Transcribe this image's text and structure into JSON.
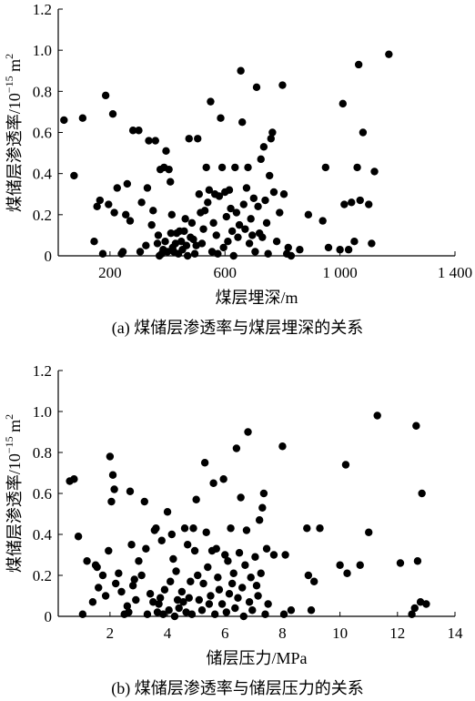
{
  "chart_data": [
    {
      "type": "scatter",
      "caption": "(a)  煤储层渗透率与煤层埋深的关系",
      "xlabel": "煤层埋深/m",
      "ylabel": "煤储层渗透率/10",
      "ylabel_sup": "−15",
      "ylabel_unit": " m",
      "ylabel_unit_sup": "2",
      "xlim": [
        20,
        1400
      ],
      "ylim": [
        0,
        1.2
      ],
      "x_ticks": [
        200,
        600,
        1000,
        1400
      ],
      "x_tick_labels": [
        "200",
        "600",
        "1 000",
        "1 400"
      ],
      "y_ticks": [
        0,
        0.2,
        0.4,
        0.6,
        0.8,
        1.0,
        1.2
      ],
      "y_tick_labels": [
        "0",
        "0.2",
        "0.4",
        "0.6",
        "0.8",
        "1.0",
        "1.2"
      ],
      "grid": false,
      "points": [
        [
          40,
          0.66
        ],
        [
          75,
          0.39
        ],
        [
          105,
          0.67
        ],
        [
          145,
          0.07
        ],
        [
          155,
          0.24
        ],
        [
          165,
          0.27
        ],
        [
          175,
          0.01
        ],
        [
          185,
          0.78
        ],
        [
          195,
          0.25
        ],
        [
          210,
          0.69
        ],
        [
          215,
          0.21
        ],
        [
          225,
          0.33
        ],
        [
          240,
          0.01
        ],
        [
          245,
          0.02
        ],
        [
          255,
          0.2
        ],
        [
          260,
          0.35
        ],
        [
          270,
          0.17
        ],
        [
          280,
          0.61
        ],
        [
          300,
          0.61
        ],
        [
          305,
          0.02
        ],
        [
          310,
          0.26
        ],
        [
          325,
          0.05
        ],
        [
          330,
          0.33
        ],
        [
          335,
          0.56
        ],
        [
          345,
          0.15
        ],
        [
          350,
          0.22
        ],
        [
          358,
          0.56
        ],
        [
          365,
          0.06
        ],
        [
          368,
          0.1
        ],
        [
          372,
          0.0
        ],
        [
          375,
          0.42
        ],
        [
          380,
          0.01
        ],
        [
          385,
          0.03
        ],
        [
          388,
          0.43
        ],
        [
          392,
          0.07
        ],
        [
          395,
          0.51
        ],
        [
          400,
          0.02
        ],
        [
          405,
          0.42
        ],
        [
          410,
          0.36
        ],
        [
          412,
          0.11
        ],
        [
          415,
          0.2
        ],
        [
          418,
          0.04
        ],
        [
          422,
          0.02
        ],
        [
          428,
          0.06
        ],
        [
          432,
          0.11
        ],
        [
          438,
          0.01
        ],
        [
          442,
          0.12
        ],
        [
          448,
          0.07
        ],
        [
          452,
          0.03
        ],
        [
          458,
          0.12
        ],
        [
          462,
          0.18
        ],
        [
          466,
          0.05
        ],
        [
          470,
          0.0
        ],
        [
          475,
          0.57
        ],
        [
          480,
          0.09
        ],
        [
          485,
          0.16
        ],
        [
          490,
          0.08
        ],
        [
          495,
          0.01
        ],
        [
          500,
          0.05
        ],
        [
          505,
          0.57
        ],
        [
          510,
          0.3
        ],
        [
          515,
          0.21
        ],
        [
          520,
          0.06
        ],
        [
          525,
          0.13
        ],
        [
          530,
          0.22
        ],
        [
          535,
          0.43
        ],
        [
          540,
          0.26
        ],
        [
          545,
          0.32
        ],
        [
          550,
          0.75
        ],
        [
          555,
          0.02
        ],
        [
          560,
          0.16
        ],
        [
          565,
          0.3
        ],
        [
          570,
          0.1
        ],
        [
          575,
          0.01
        ],
        [
          580,
          0.29
        ],
        [
          585,
          0.67
        ],
        [
          590,
          0.43
        ],
        [
          595,
          0.04
        ],
        [
          600,
          0.31
        ],
        [
          605,
          0.19
        ],
        [
          610,
          0.07
        ],
        [
          615,
          0.32
        ],
        [
          620,
          0.23
        ],
        [
          625,
          0.12
        ],
        [
          630,
          0.0
        ],
        [
          635,
          0.43
        ],
        [
          640,
          0.21
        ],
        [
          645,
          0.09
        ],
        [
          650,
          0.15
        ],
        [
          655,
          0.9
        ],
        [
          660,
          0.65
        ],
        [
          665,
          0.25
        ],
        [
          670,
          0.13
        ],
        [
          675,
          0.33
        ],
        [
          680,
          0.43
        ],
        [
          685,
          0.06
        ],
        [
          690,
          0.18
        ],
        [
          695,
          0.1
        ],
        [
          700,
          0.28
        ],
        [
          705,
          0.02
        ],
        [
          710,
          0.82
        ],
        [
          715,
          0.24
        ],
        [
          720,
          0.11
        ],
        [
          725,
          0.47
        ],
        [
          730,
          0.09
        ],
        [
          735,
          0.53
        ],
        [
          740,
          0.27
        ],
        [
          745,
          0.16
        ],
        [
          750,
          0.01
        ],
        [
          755,
          0.39
        ],
        [
          760,
          0.57
        ],
        [
          765,
          0.6
        ],
        [
          770,
          0.31
        ],
        [
          780,
          0.07
        ],
        [
          790,
          0.21
        ],
        [
          800,
          0.83
        ],
        [
          805,
          0.3
        ],
        [
          815,
          0.01
        ],
        [
          820,
          0.04
        ],
        [
          830,
          0.0
        ],
        [
          860,
          0.03
        ],
        [
          890,
          0.2
        ],
        [
          940,
          0.17
        ],
        [
          950,
          0.43
        ],
        [
          960,
          0.04
        ],
        [
          1000,
          0.03
        ],
        [
          1010,
          0.74
        ],
        [
          1015,
          0.25
        ],
        [
          1030,
          0.03
        ],
        [
          1040,
          0.26
        ],
        [
          1050,
          0.07
        ],
        [
          1060,
          0.43
        ],
        [
          1065,
          0.93
        ],
        [
          1070,
          0.27
        ],
        [
          1080,
          0.6
        ],
        [
          1100,
          0.25
        ],
        [
          1110,
          0.06
        ],
        [
          1120,
          0.41
        ],
        [
          1170,
          0.98
        ]
      ]
    },
    {
      "type": "scatter",
      "caption": "(b)  煤储层渗透率与储层压力的关系",
      "xlabel": "储层压力/MPa",
      "ylabel": "煤储层渗透率/10",
      "ylabel_sup": "−15",
      "ylabel_unit": " m",
      "ylabel_unit_sup": "2",
      "xlim": [
        0.2,
        14
      ],
      "ylim": [
        0,
        1.2
      ],
      "x_ticks": [
        2,
        4,
        6,
        8,
        10,
        12,
        14
      ],
      "x_tick_labels": [
        "2",
        "4",
        "6",
        "8",
        "10",
        "12",
        "14"
      ],
      "y_ticks": [
        0,
        0.2,
        0.4,
        0.6,
        0.8,
        1.0,
        1.2
      ],
      "y_tick_labels": [
        "0",
        "0.2",
        "0.4",
        "0.6",
        "0.8",
        "1.0",
        "1.2"
      ],
      "grid": false,
      "points": [
        [
          0.6,
          0.66
        ],
        [
          0.75,
          0.67
        ],
        [
          0.9,
          0.39
        ],
        [
          1.05,
          0.01
        ],
        [
          1.2,
          0.27
        ],
        [
          1.4,
          0.07
        ],
        [
          1.5,
          0.25
        ],
        [
          1.55,
          0.24
        ],
        [
          1.6,
          0.14
        ],
        [
          1.75,
          0.2
        ],
        [
          1.85,
          0.1
        ],
        [
          1.95,
          0.32
        ],
        [
          2.0,
          0.78
        ],
        [
          2.05,
          0.56
        ],
        [
          2.1,
          0.69
        ],
        [
          2.15,
          0.62
        ],
        [
          2.2,
          0.16
        ],
        [
          2.3,
          0.21
        ],
        [
          2.4,
          0.12
        ],
        [
          2.5,
          0.01
        ],
        [
          2.6,
          0.05
        ],
        [
          2.65,
          0.02
        ],
        [
          2.7,
          0.61
        ],
        [
          2.75,
          0.35
        ],
        [
          2.8,
          0.15
        ],
        [
          2.85,
          0.18
        ],
        [
          2.9,
          0.08
        ],
        [
          3.0,
          0.27
        ],
        [
          3.1,
          0.2
        ],
        [
          3.2,
          0.56
        ],
        [
          3.25,
          0.33
        ],
        [
          3.3,
          0.01
        ],
        [
          3.4,
          0.11
        ],
        [
          3.5,
          0.07
        ],
        [
          3.55,
          0.42
        ],
        [
          3.6,
          0.43
        ],
        [
          3.65,
          0.02
        ],
        [
          3.7,
          0.06
        ],
        [
          3.75,
          0.09
        ],
        [
          3.8,
          0.37
        ],
        [
          3.85,
          0.01
        ],
        [
          3.9,
          0.13
        ],
        [
          4.0,
          0.51
        ],
        [
          4.05,
          0.03
        ],
        [
          4.1,
          0.17
        ],
        [
          4.15,
          0.4
        ],
        [
          4.2,
          0.28
        ],
        [
          4.25,
          0.0
        ],
        [
          4.3,
          0.22
        ],
        [
          4.35,
          0.08
        ],
        [
          4.4,
          0.04
        ],
        [
          4.5,
          0.12
        ],
        [
          4.55,
          0.07
        ],
        [
          4.6,
          0.43
        ],
        [
          4.65,
          0.02
        ],
        [
          4.7,
          0.35
        ],
        [
          4.75,
          0.09
        ],
        [
          4.8,
          0.17
        ],
        [
          4.85,
          0.01
        ],
        [
          4.9,
          0.43
        ],
        [
          4.95,
          0.32
        ],
        [
          5.0,
          0.57
        ],
        [
          5.05,
          0.2
        ],
        [
          5.1,
          0.08
        ],
        [
          5.2,
          0.03
        ],
        [
          5.25,
          0.16
        ],
        [
          5.3,
          0.75
        ],
        [
          5.35,
          0.41
        ],
        [
          5.4,
          0.24
        ],
        [
          5.45,
          0.06
        ],
        [
          5.5,
          0.1
        ],
        [
          5.55,
          0.32
        ],
        [
          5.6,
          0.65
        ],
        [
          5.65,
          0.01
        ],
        [
          5.7,
          0.33
        ],
        [
          5.75,
          0.19
        ],
        [
          5.8,
          0.13
        ],
        [
          5.9,
          0.06
        ],
        [
          5.95,
          0.67
        ],
        [
          6.0,
          0.3
        ],
        [
          6.05,
          0.02
        ],
        [
          6.1,
          0.27
        ],
        [
          6.15,
          0.11
        ],
        [
          6.2,
          0.43
        ],
        [
          6.25,
          0.16
        ],
        [
          6.3,
          0.21
        ],
        [
          6.35,
          0.04
        ],
        [
          6.4,
          0.82
        ],
        [
          6.45,
          0.09
        ],
        [
          6.5,
          0.31
        ],
        [
          6.55,
          0.58
        ],
        [
          6.6,
          0.14
        ],
        [
          6.65,
          0.0
        ],
        [
          6.7,
          0.25
        ],
        [
          6.75,
          0.42
        ],
        [
          6.8,
          0.9
        ],
        [
          6.85,
          0.07
        ],
        [
          6.9,
          0.19
        ],
        [
          6.95,
          0.03
        ],
        [
          7.05,
          0.29
        ],
        [
          7.1,
          0.15
        ],
        [
          7.15,
          0.1
        ],
        [
          7.2,
          0.47
        ],
        [
          7.25,
          0.21
        ],
        [
          7.3,
          0.53
        ],
        [
          7.35,
          0.6
        ],
        [
          7.4,
          0.01
        ],
        [
          7.45,
          0.33
        ],
        [
          7.5,
          0.06
        ],
        [
          7.7,
          0.3
        ],
        [
          8.0,
          0.83
        ],
        [
          8.05,
          0.01
        ],
        [
          8.1,
          0.3
        ],
        [
          8.3,
          0.03
        ],
        [
          8.85,
          0.43
        ],
        [
          8.9,
          0.2
        ],
        [
          9.0,
          0.03
        ],
        [
          9.1,
          0.17
        ],
        [
          9.3,
          0.43
        ],
        [
          10.0,
          0.25
        ],
        [
          10.2,
          0.74
        ],
        [
          10.25,
          0.21
        ],
        [
          10.7,
          0.25
        ],
        [
          11.0,
          0.41
        ],
        [
          11.3,
          0.98
        ],
        [
          12.1,
          0.26
        ],
        [
          12.5,
          0.01
        ],
        [
          12.6,
          0.04
        ],
        [
          12.65,
          0.93
        ],
        [
          12.7,
          0.27
        ],
        [
          12.8,
          0.07
        ],
        [
          12.85,
          0.6
        ],
        [
          13.0,
          0.06
        ]
      ]
    }
  ]
}
